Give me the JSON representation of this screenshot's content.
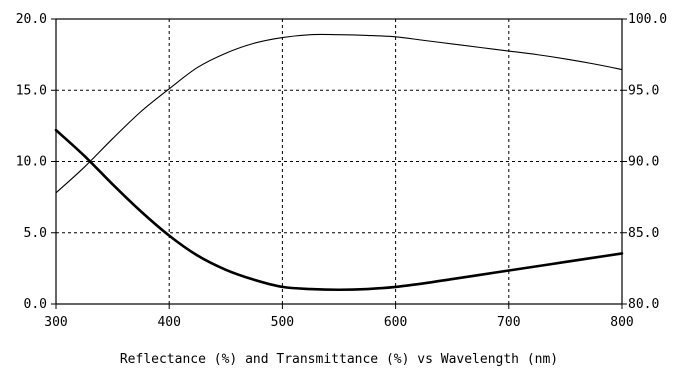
{
  "chart_data": {
    "type": "line",
    "title": "",
    "xlabel": "Reflectance (%) and Transmittance (%)  vs  Wavelength (nm)",
    "ylabel": "",
    "y2label": "",
    "xlim": [
      300,
      800
    ],
    "ylim": [
      0,
      20
    ],
    "y2lim": [
      80,
      100
    ],
    "grid": true,
    "x_ticks": [
      "300",
      "400",
      "500",
      "600",
      "700",
      "800"
    ],
    "y_ticks": [
      "0.0",
      "5.0",
      "10.0",
      "15.0",
      "20.0"
    ],
    "y2_ticks": [
      "80.0",
      "85.0",
      "90.0",
      "95.0",
      "100.0"
    ],
    "series": [
      {
        "axis": "left",
        "color": "#000000",
        "style": "thick",
        "x": [
          300,
          325,
          350,
          375,
          400,
          425,
          450,
          475,
          500,
          525,
          550,
          575,
          600,
          625,
          650,
          675,
          700,
          725,
          750,
          775,
          800
        ],
        "values": [
          12.2,
          10.4,
          8.4,
          6.5,
          4.8,
          3.4,
          2.4,
          1.7,
          1.2,
          1.05,
          1.0,
          1.05,
          1.2,
          1.45,
          1.75,
          2.05,
          2.35,
          2.65,
          2.95,
          3.25,
          3.55
        ]
      },
      {
        "axis": "right",
        "color": "#000000",
        "style": "thin",
        "x": [
          300,
          325,
          350,
          375,
          400,
          425,
          450,
          475,
          500,
          525,
          550,
          575,
          600,
          625,
          650,
          675,
          700,
          725,
          750,
          775,
          800
        ],
        "values": [
          87.8,
          89.6,
          91.6,
          93.5,
          95.1,
          96.6,
          97.6,
          98.3,
          98.7,
          98.9,
          98.9,
          98.85,
          98.75,
          98.5,
          98.25,
          98.0,
          97.75,
          97.5,
          97.2,
          96.85,
          96.45
        ]
      }
    ]
  }
}
